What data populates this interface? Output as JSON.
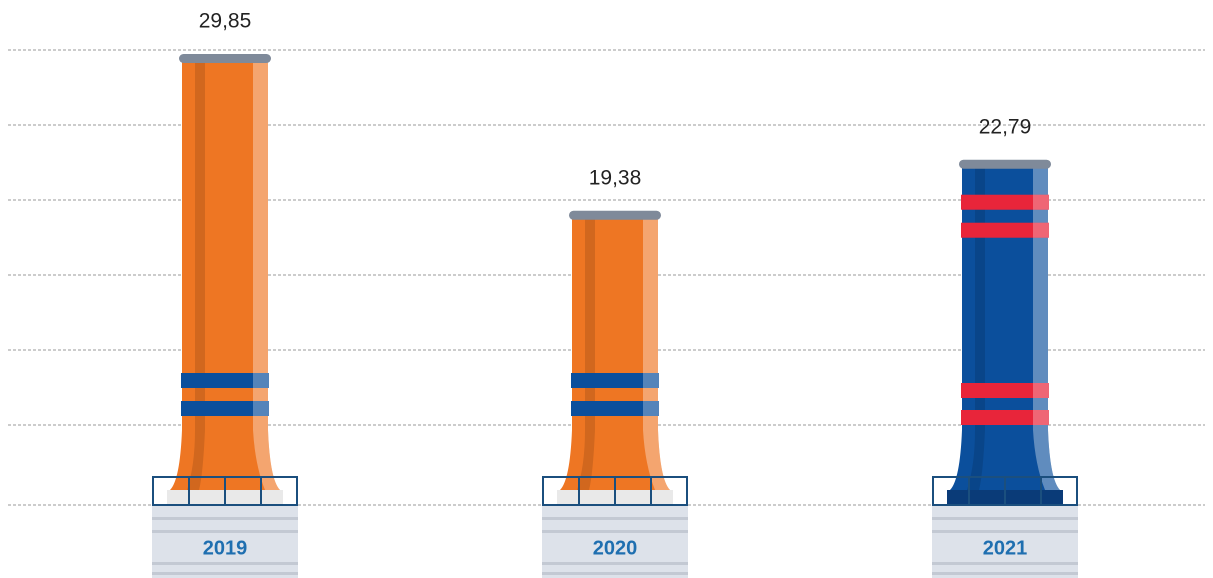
{
  "chart_data": {
    "type": "bar",
    "categories": [
      "2019",
      "2020",
      "2021"
    ],
    "values": [
      29.85,
      19.38,
      22.79
    ],
    "value_labels": [
      "29,85",
      "19,38",
      "22,79"
    ],
    "colors": [
      "#ee7623",
      "#ee7623",
      "#0b4f9c"
    ],
    "band_colors": [
      "#0b4f9c",
      "#0b4f9c",
      "#e8253a"
    ]
  }
}
